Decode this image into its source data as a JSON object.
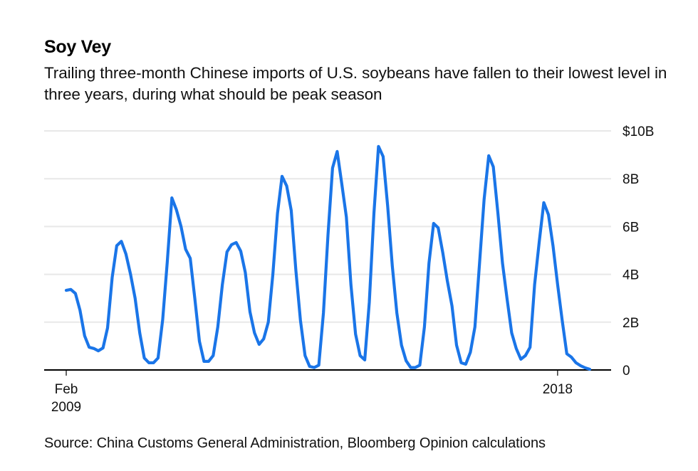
{
  "header": {
    "title": "Soy Vey",
    "subtitle": "Trailing three-month Chinese imports of U.S. soybeans have fallen to their lowest level in three years, during what should be peak season"
  },
  "footer": {
    "source": "Source: China Customs General Administration, Bloomberg Opinion calculations"
  },
  "colors": {
    "line": "#1a75e8",
    "grid": "#e8e8e8",
    "axis": "#000000"
  },
  "chart_data": {
    "type": "line",
    "title": "Soy Vey",
    "subtitle": "Trailing three-month Chinese imports of U.S. soybeans have fallen to their lowest level in three years, during what should be peak season",
    "xlabel": "",
    "ylabel": "",
    "x_start": "Feb 2009",
    "x_end": "Jan 2018",
    "frequency": "monthly",
    "ylim": [
      0,
      10
    ],
    "y_unit": "billion USD",
    "grid": true,
    "legend": "none",
    "y_ticks": [
      {
        "value": 10,
        "label": "$10B"
      },
      {
        "value": 8,
        "label": "8B"
      },
      {
        "value": 6,
        "label": "6B"
      },
      {
        "value": 4,
        "label": "4B"
      },
      {
        "value": 2,
        "label": "2B"
      },
      {
        "value": 0,
        "label": "0"
      }
    ],
    "x_ticks": [
      {
        "index": 0,
        "line1": "Feb",
        "line2": "2009"
      },
      {
        "index": 107,
        "line1": "2018",
        "line2": ""
      }
    ],
    "series": [
      {
        "name": "Trailing three-month Chinese imports of U.S. soybeans",
        "values": [
          3.33,
          3.37,
          3.2,
          2.5,
          1.43,
          0.95,
          0.9,
          0.8,
          0.92,
          1.76,
          3.87,
          5.2,
          5.38,
          4.85,
          4.0,
          3.0,
          1.55,
          0.5,
          0.3,
          0.3,
          0.5,
          2.1,
          4.5,
          7.2,
          6.7,
          6.0,
          5.05,
          4.67,
          3.0,
          1.2,
          0.36,
          0.36,
          0.6,
          1.8,
          3.57,
          4.94,
          5.24,
          5.33,
          4.97,
          4.08,
          2.44,
          1.55,
          1.07,
          1.3,
          2.0,
          4.0,
          6.55,
          8.1,
          7.7,
          6.67,
          4.17,
          2.08,
          0.6,
          0.15,
          0.1,
          0.2,
          2.38,
          5.65,
          8.45,
          9.14,
          7.8,
          6.4,
          3.57,
          1.5,
          0.6,
          0.42,
          2.83,
          6.55,
          9.35,
          8.93,
          6.85,
          4.35,
          2.38,
          1.04,
          0.39,
          0.1,
          0.1,
          0.2,
          1.8,
          4.47,
          6.13,
          5.95,
          4.9,
          3.72,
          2.68,
          1.04,
          0.3,
          0.24,
          0.74,
          1.8,
          4.47,
          7.14,
          8.96,
          8.5,
          6.55,
          4.47,
          2.98,
          1.55,
          0.9,
          0.45,
          0.6,
          0.95,
          3.57,
          5.36,
          7.0,
          6.5,
          5.2,
          3.57,
          2.08,
          0.68,
          0.54,
          0.3,
          0.18,
          0.09,
          0.03
        ]
      }
    ]
  }
}
